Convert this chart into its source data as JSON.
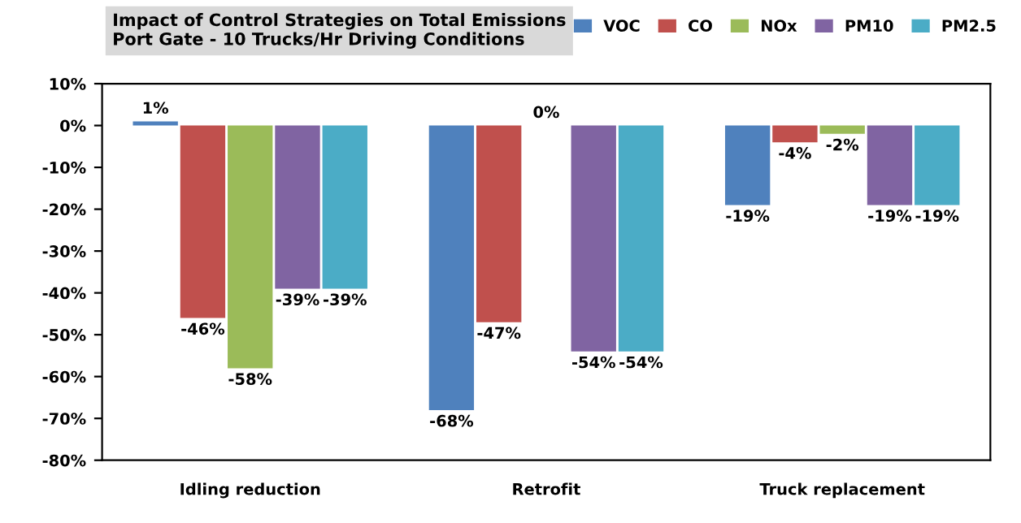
{
  "chart_data": {
    "type": "bar",
    "title": "Impact of Control Strategies on Total Emissions",
    "subtitle": "Port Gate - 10 Trucks/Hr Driving Conditions",
    "categories": [
      "Idling reduction",
      "Retrofit",
      "Truck replacement"
    ],
    "series": [
      {
        "name": "VOC",
        "color": "#4f81bd",
        "values": [
          1,
          -68,
          -19
        ],
        "value_labels": [
          "1%",
          "-68%",
          "-19%"
        ]
      },
      {
        "name": "CO",
        "color": "#c0504d",
        "values": [
          -46,
          -47,
          -4
        ],
        "value_labels": [
          "-46%",
          "-47%",
          "-4%"
        ]
      },
      {
        "name": "NOx",
        "color": "#9bbb59",
        "values": [
          -58,
          0,
          -2
        ],
        "value_labels": [
          "-58%",
          "0%",
          "-2%"
        ]
      },
      {
        "name": "PM10",
        "color": "#8064a2",
        "values": [
          -39,
          -54,
          -19
        ],
        "value_labels": [
          "-39%",
          "-54%",
          "-19%"
        ]
      },
      {
        "name": "PM2.5",
        "color": "#4bacc6",
        "values": [
          -39,
          -54,
          -19
        ],
        "value_labels": [
          "-39%",
          "-54%",
          "-19%"
        ]
      }
    ],
    "ylim": [
      -80,
      10
    ],
    "yticks": [
      {
        "value": 10,
        "label": "10%"
      },
      {
        "value": 0,
        "label": "0%"
      },
      {
        "value": -10,
        "label": "-10%"
      },
      {
        "value": -20,
        "label": "-20%"
      },
      {
        "value": -30,
        "label": "-30%"
      },
      {
        "value": -40,
        "label": "-40%"
      },
      {
        "value": -50,
        "label": "-50%"
      },
      {
        "value": -60,
        "label": "-60%"
      },
      {
        "value": -70,
        "label": "-70%"
      },
      {
        "value": -80,
        "label": "-80%"
      }
    ],
    "grid": false,
    "legend": "top right"
  }
}
